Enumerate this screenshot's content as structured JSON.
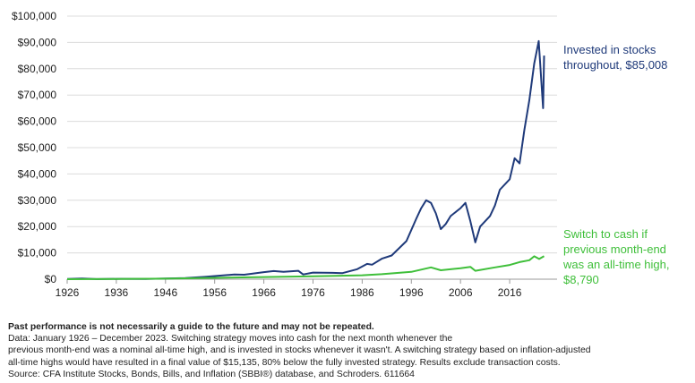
{
  "chart_data": {
    "type": "line",
    "ylim": [
      0,
      100000
    ],
    "xlim": [
      1926,
      2024
    ],
    "y_ticks": [
      "$0",
      "$10,000",
      "$20,000",
      "$30,000",
      "$40,000",
      "$50,000",
      "$60,000",
      "$70,000",
      "$80,000",
      "$90,000",
      "$100,000"
    ],
    "x_ticks": [
      "1926",
      "1936",
      "1946",
      "1956",
      "1966",
      "1976",
      "1986",
      "1996",
      "2006",
      "2016"
    ],
    "grid": "horizontal",
    "series": [
      {
        "color": "#1f3a7a",
        "x": [
          1926,
          1929,
          1932,
          1937,
          1942,
          1946,
          1950,
          1954,
          1956,
          1960,
          1962,
          1966,
          1968,
          1970,
          1973,
          1974,
          1976,
          1980,
          1982,
          1985,
          1987,
          1988,
          1990,
          1992,
          1995,
          1997,
          1998,
          1999,
          2000,
          2001,
          2002,
          2003,
          2004,
          2006,
          2007,
          2008,
          2009,
          2010,
          2012,
          2013,
          2014,
          2016,
          2017,
          2018,
          2019,
          2020,
          2021,
          2021.9,
          2022.8,
          2023
        ],
        "y": [
          100,
          250,
          50,
          120,
          100,
          250,
          400,
          900,
          1200,
          1800,
          1700,
          2700,
          3100,
          2800,
          3200,
          1800,
          2500,
          2400,
          2300,
          3800,
          5800,
          5500,
          7800,
          9000,
          14500,
          23000,
          27000,
          30000,
          29000,
          25000,
          19000,
          21000,
          24000,
          27000,
          29000,
          22000,
          14000,
          20000,
          24000,
          28000,
          34000,
          38000,
          46000,
          44000,
          57000,
          68000,
          82000,
          90500,
          65000,
          85008
        ]
      },
      {
        "color": "#3fbf3a",
        "x": [
          1926,
          1946,
          1956,
          1966,
          1976,
          1986,
          1990,
          1996,
          2000,
          2002,
          2006,
          2008,
          2009,
          2013,
          2016,
          2018,
          2020,
          2021,
          2022,
          2023
        ],
        "y": [
          0,
          200,
          500,
          800,
          1100,
          1500,
          1900,
          2800,
          4500,
          3400,
          4200,
          4700,
          3200,
          4500,
          5400,
          6500,
          7200,
          8700,
          7700,
          8790
        ]
      }
    ]
  },
  "annotations": {
    "stocks_line1": "Invested in stocks",
    "stocks_line2": "throughout, $85,008",
    "cash_line1": "Switch to cash if",
    "cash_line2": "previous month-end",
    "cash_line3": "was an all-time high,",
    "cash_line4": "$8,790"
  },
  "footnote": {
    "bold": "Past performance is not necessarily a guide to the future and may not be repeated.",
    "line1": "Data: January 1926 – December 2023. Switching strategy moves into cash for the next month whenever the",
    "line2": "previous month-end was a nominal all-time high, and is invested in stocks whenever it wasn't. A switching strategy based on inflation-adjusted",
    "line3": "all-time highs would have resulted in a final value of $15,135, 80% below the fully invested strategy. Results exclude transaction costs.",
    "line4": "Source: CFA Institute Stocks, Bonds, Bills, and Inflation (SBBI®) database, and Schroders. 611664"
  }
}
